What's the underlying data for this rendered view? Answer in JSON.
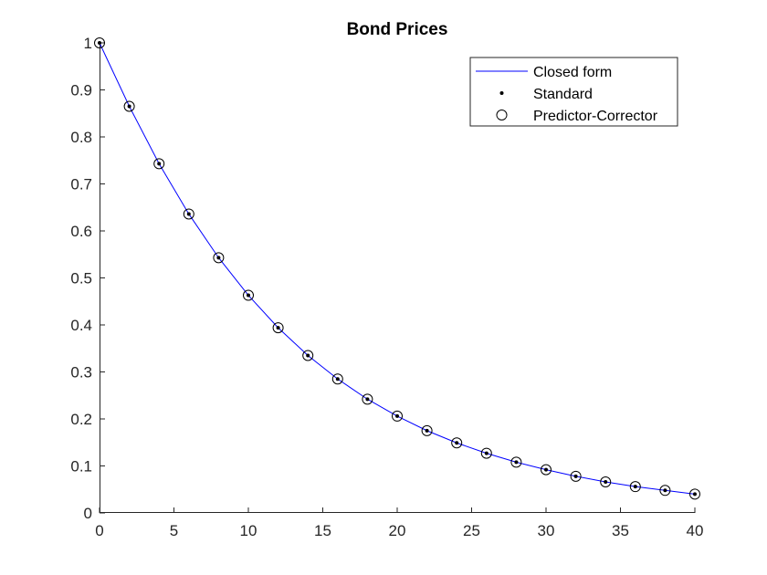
{
  "chart_data": {
    "type": "line",
    "title": "Bond Prices",
    "xlabel": "",
    "ylabel": "",
    "xlim": [
      0,
      40
    ],
    "ylim": [
      0,
      1
    ],
    "xticks": [
      0,
      5,
      10,
      15,
      20,
      25,
      30,
      35,
      40
    ],
    "yticks": [
      0,
      0.1,
      0.2,
      0.3,
      0.4,
      0.5,
      0.6,
      0.7,
      0.8,
      0.9,
      1
    ],
    "grid": false,
    "legend_position": "top-right",
    "x": [
      0,
      2,
      4,
      6,
      8,
      10,
      12,
      14,
      16,
      18,
      20,
      22,
      24,
      26,
      28,
      30,
      32,
      34,
      36,
      38,
      40
    ],
    "series": [
      {
        "name": "Closed form",
        "style": "line",
        "color": "#0000ff",
        "values": [
          1.0,
          0.865,
          0.743,
          0.636,
          0.543,
          0.463,
          0.394,
          0.335,
          0.285,
          0.242,
          0.206,
          0.175,
          0.149,
          0.127,
          0.108,
          0.092,
          0.078,
          0.066,
          0.056,
          0.048,
          0.04
        ]
      },
      {
        "name": "Standard",
        "style": "dot",
        "color": "#000000",
        "values": [
          1.0,
          0.865,
          0.743,
          0.636,
          0.543,
          0.463,
          0.394,
          0.335,
          0.285,
          0.242,
          0.206,
          0.175,
          0.149,
          0.127,
          0.108,
          0.092,
          0.078,
          0.066,
          0.056,
          0.048,
          0.04
        ]
      },
      {
        "name": "Predictor-Corrector",
        "style": "circle",
        "color": "#000000",
        "values": [
          1.0,
          0.865,
          0.743,
          0.636,
          0.543,
          0.463,
          0.394,
          0.335,
          0.285,
          0.242,
          0.206,
          0.175,
          0.149,
          0.127,
          0.108,
          0.092,
          0.078,
          0.066,
          0.056,
          0.048,
          0.04
        ]
      }
    ]
  }
}
